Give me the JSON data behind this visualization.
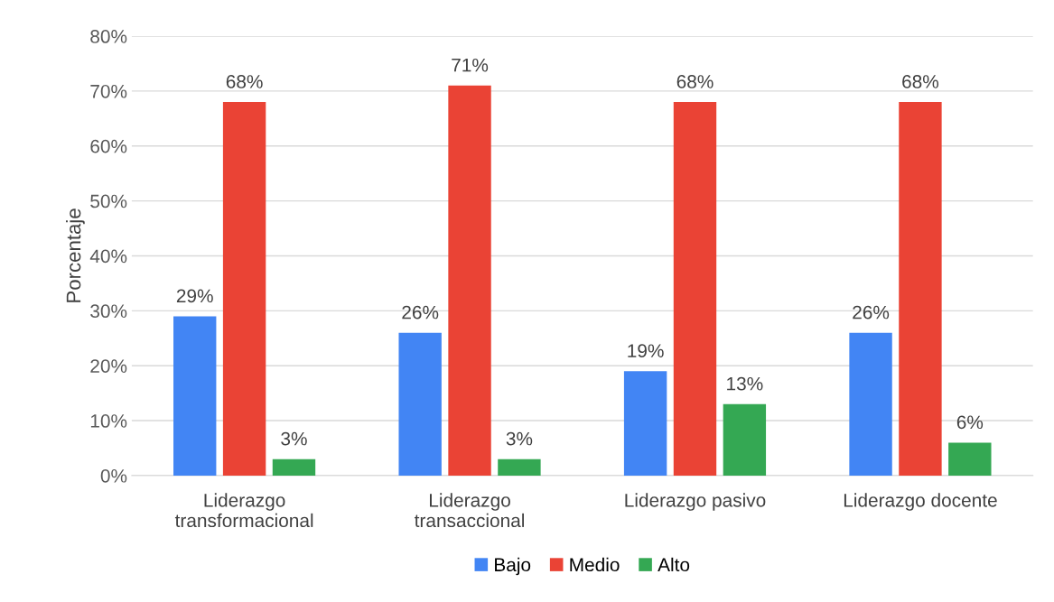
{
  "chart_data": {
    "type": "bar",
    "ylabel": "Porcentaje",
    "categories": [
      "Liderazgo\ntransformacional",
      "Liderazgo\ntransaccional",
      "Liderazgo pasivo",
      "Liderazgo docente"
    ],
    "series": [
      {
        "name": "Bajo",
        "color": "#4285f4",
        "values": [
          29,
          26,
          19,
          26
        ],
        "value_labels": [
          "29%",
          "26%",
          "19%",
          "26%"
        ]
      },
      {
        "name": "Medio",
        "color": "#ea4335",
        "values": [
          68,
          71,
          68,
          68
        ],
        "value_labels": [
          "68%",
          "71%",
          "68%",
          "68%"
        ]
      },
      {
        "name": "Alto",
        "color": "#34a853",
        "values": [
          3,
          3,
          13,
          6
        ],
        "value_labels": [
          "3%",
          "3%",
          "13%",
          "6%"
        ]
      }
    ],
    "ylim": [
      0,
      80
    ],
    "yticks": [
      {
        "value": 0,
        "label": "0%"
      },
      {
        "value": 10,
        "label": "10%"
      },
      {
        "value": 20,
        "label": "20%"
      },
      {
        "value": 30,
        "label": "30%"
      },
      {
        "value": 40,
        "label": "40%"
      },
      {
        "value": 50,
        "label": "50%"
      },
      {
        "value": 60,
        "label": "60%"
      },
      {
        "value": 70,
        "label": "70%"
      },
      {
        "value": 80,
        "label": "80%"
      }
    ],
    "grid": "y",
    "legend": "bottom"
  }
}
